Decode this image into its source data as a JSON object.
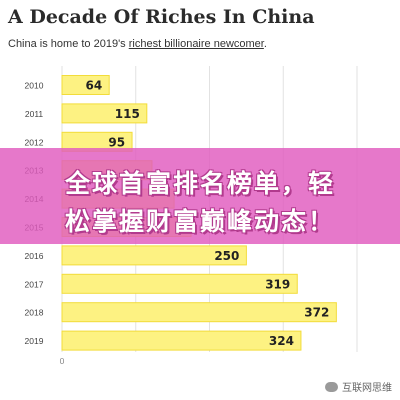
{
  "header": {
    "title": "A Decade Of Riches In China",
    "subtitle_prefix": "China is home to 2019's ",
    "subtitle_link": "richest billionaire newcomer",
    "subtitle_suffix": "."
  },
  "overlay": {
    "line1": "全球首富排名榜单，轻",
    "line2": "松掌握财富巅峰动态！"
  },
  "watermark": {
    "text": "互联网思维"
  },
  "colors": {
    "bar_fill": "#fdf282",
    "bar_border": "#f2dc3a",
    "overlay": "#e05abe"
  },
  "chart_data": {
    "type": "bar",
    "orientation": "horizontal",
    "categories": [
      "2010",
      "2011",
      "2012",
      "2013",
      "2014",
      "2015",
      "2016",
      "2017",
      "2018",
      "2019"
    ],
    "values": [
      64,
      115,
      95,
      122,
      152,
      175,
      250,
      319,
      372,
      324
    ],
    "value_labels": [
      "64",
      "115",
      "95",
      "",
      "",
      "",
      "250",
      "319",
      "372",
      "324"
    ],
    "xticks": [
      0,
      100,
      200,
      300,
      400
    ],
    "xtick_labels": [
      "0",
      "",
      "",
      "",
      ""
    ],
    "xlim": [
      0,
      400
    ],
    "grid": true
  }
}
